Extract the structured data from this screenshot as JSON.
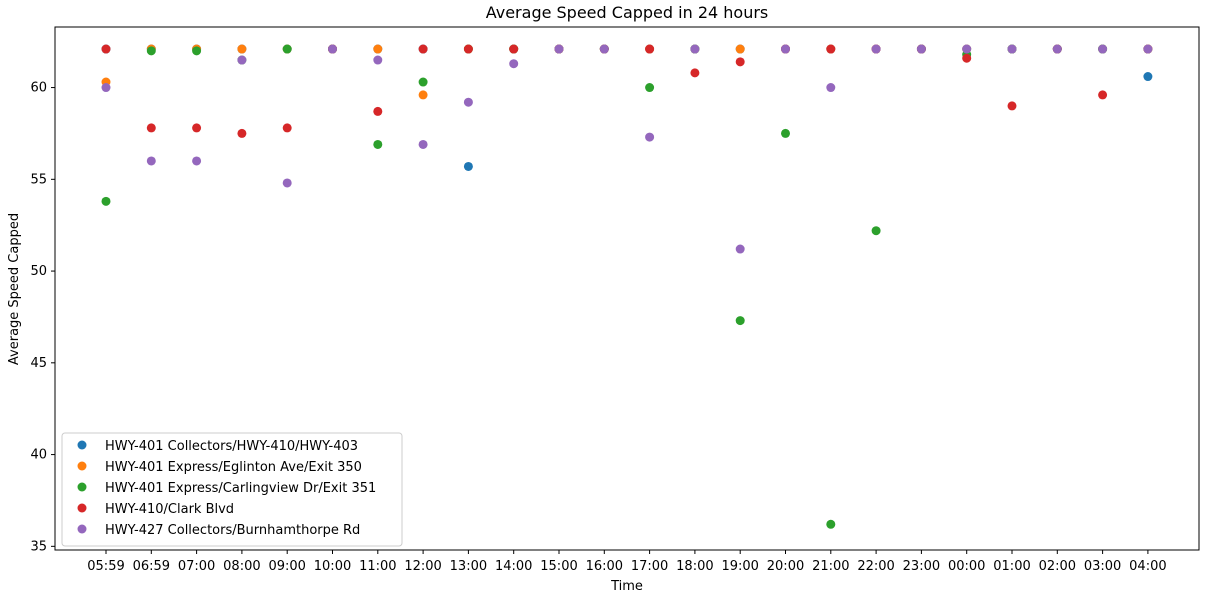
{
  "chart_data": {
    "type": "scatter",
    "title": "Average Speed Capped in 24 hours",
    "xlabel": "Time",
    "ylabel": "Average Speed Capped",
    "categories": [
      "05:59",
      "06:59",
      "07:00",
      "08:00",
      "09:00",
      "10:00",
      "11:00",
      "12:00",
      "13:00",
      "14:00",
      "15:00",
      "16:00",
      "17:00",
      "18:00",
      "19:00",
      "20:00",
      "21:00",
      "22:00",
      "23:00",
      "00:00",
      "01:00",
      "02:00",
      "03:00",
      "04:00"
    ],
    "ylim": [
      34.8,
      63.3
    ],
    "yticks": [
      35,
      40,
      45,
      50,
      55,
      60
    ],
    "grid": false,
    "legend_position": "lower-left",
    "series": [
      {
        "name": "HWY-401 Collectors/HWY-410/HWY-403",
        "color": "#1f77b4",
        "values": [
          62.1,
          62.1,
          62.1,
          62.1,
          62.1,
          62.1,
          62.1,
          62.1,
          55.7,
          62.1,
          62.1,
          62.1,
          62.1,
          62.1,
          62.1,
          62.1,
          62.1,
          62.1,
          62.1,
          62.1,
          62.1,
          62.1,
          62.1,
          60.6
        ]
      },
      {
        "name": "HWY-401 Express/Eglinton Ave/Exit 350",
        "color": "#ff7f0e",
        "values": [
          60.3,
          62.1,
          62.1,
          62.1,
          62.1,
          62.1,
          62.1,
          59.6,
          62.1,
          62.1,
          62.1,
          62.1,
          62.1,
          62.1,
          62.1,
          62.1,
          62.1,
          62.1,
          62.1,
          62.1,
          62.1,
          62.1,
          62.1,
          62.1
        ]
      },
      {
        "name": "HWY-401 Express/Carlingview Dr/Exit 351",
        "color": "#2ca02c",
        "values": [
          53.8,
          62.0,
          62.0,
          61.5,
          62.1,
          62.1,
          56.9,
          60.3,
          62.1,
          62.1,
          62.1,
          62.1,
          60.0,
          62.1,
          47.3,
          57.5,
          36.2,
          52.2,
          62.1,
          61.8,
          62.1,
          62.1,
          62.1,
          62.1
        ]
      },
      {
        "name": "HWY-410/Clark Blvd",
        "color": "#d62728",
        "values": [
          62.1,
          57.8,
          57.8,
          57.5,
          57.8,
          62.1,
          58.7,
          62.1,
          62.1,
          62.1,
          62.1,
          62.1,
          62.1,
          60.8,
          61.4,
          62.1,
          62.1,
          62.1,
          62.1,
          61.6,
          59.0,
          62.1,
          59.6,
          62.1
        ]
      },
      {
        "name": "HWY-427 Collectors/Burnhamthorpe Rd",
        "color": "#9467bd",
        "values": [
          60.0,
          56.0,
          56.0,
          61.5,
          54.8,
          62.1,
          61.5,
          56.9,
          59.2,
          61.3,
          62.1,
          62.1,
          57.3,
          62.1,
          51.2,
          62.1,
          60.0,
          62.1,
          62.1,
          62.1,
          62.1,
          62.1,
          62.1,
          62.1
        ]
      }
    ]
  }
}
